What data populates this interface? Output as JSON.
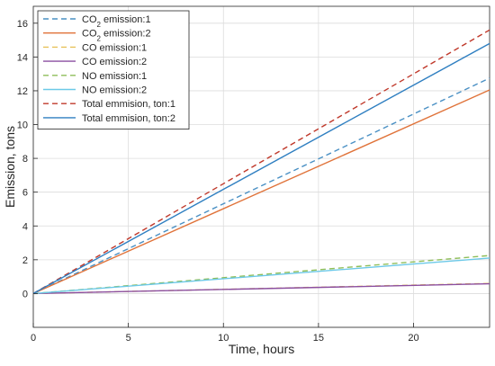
{
  "chart_data": {
    "type": "line",
    "xlabel": "Time, hours",
    "ylabel": "Emission, tons",
    "xlim": [
      0,
      24
    ],
    "ylim": [
      -2,
      17
    ],
    "xticks": [
      0,
      5,
      10,
      15,
      20
    ],
    "yticks": [
      0,
      2,
      4,
      6,
      8,
      10,
      12,
      14,
      16
    ],
    "grid": true,
    "legend_position": "top-left",
    "series": [
      {
        "name": "CO2 emission:1",
        "label": {
          "base": "CO",
          "sub": "2",
          "rest": " emission:1"
        },
        "x": [
          0,
          24
        ],
        "y": [
          0,
          12.75
        ],
        "color": "#4a90c4",
        "dash": "dashed"
      },
      {
        "name": "CO2 emission:2",
        "label": {
          "base": "CO",
          "sub": "2",
          "rest": " emission:2"
        },
        "x": [
          0,
          24
        ],
        "y": [
          0,
          12.05
        ],
        "color": "#e0733a",
        "dash": "solid"
      },
      {
        "name": "CO emission:1",
        "label": {
          "base": "CO emission:1",
          "sub": "",
          "rest": ""
        },
        "x": [
          0,
          24
        ],
        "y": [
          0,
          0.6
        ],
        "color": "#e8c15a",
        "dash": "dashed"
      },
      {
        "name": "CO emission:2",
        "label": {
          "base": "CO emission:2",
          "sub": "",
          "rest": ""
        },
        "x": [
          0,
          24
        ],
        "y": [
          0,
          0.58
        ],
        "color": "#8b4fa0",
        "dash": "solid"
      },
      {
        "name": "NO emission:1",
        "label": {
          "base": "NO emission:1",
          "sub": "",
          "rest": ""
        },
        "x": [
          0,
          24
        ],
        "y": [
          0,
          2.25
        ],
        "color": "#8fbe5a",
        "dash": "dashed"
      },
      {
        "name": "NO emission:2",
        "label": {
          "base": "NO emission:2",
          "sub": "",
          "rest": ""
        },
        "x": [
          0,
          24
        ],
        "y": [
          0,
          2.1
        ],
        "color": "#6cc9e8",
        "dash": "solid"
      },
      {
        "name": "Total emmision, ton:1",
        "label": {
          "base": "Total emmision, ton:1",
          "sub": "",
          "rest": ""
        },
        "x": [
          0,
          24
        ],
        "y": [
          0,
          15.6
        ],
        "color": "#c0392b",
        "dash": "dashed"
      },
      {
        "name": "Total emmision, ton:2",
        "label": {
          "base": "Total emmision, ton:2",
          "sub": "",
          "rest": ""
        },
        "x": [
          0,
          24
        ],
        "y": [
          0,
          14.8
        ],
        "color": "#2f7fc1",
        "dash": "solid"
      }
    ]
  }
}
